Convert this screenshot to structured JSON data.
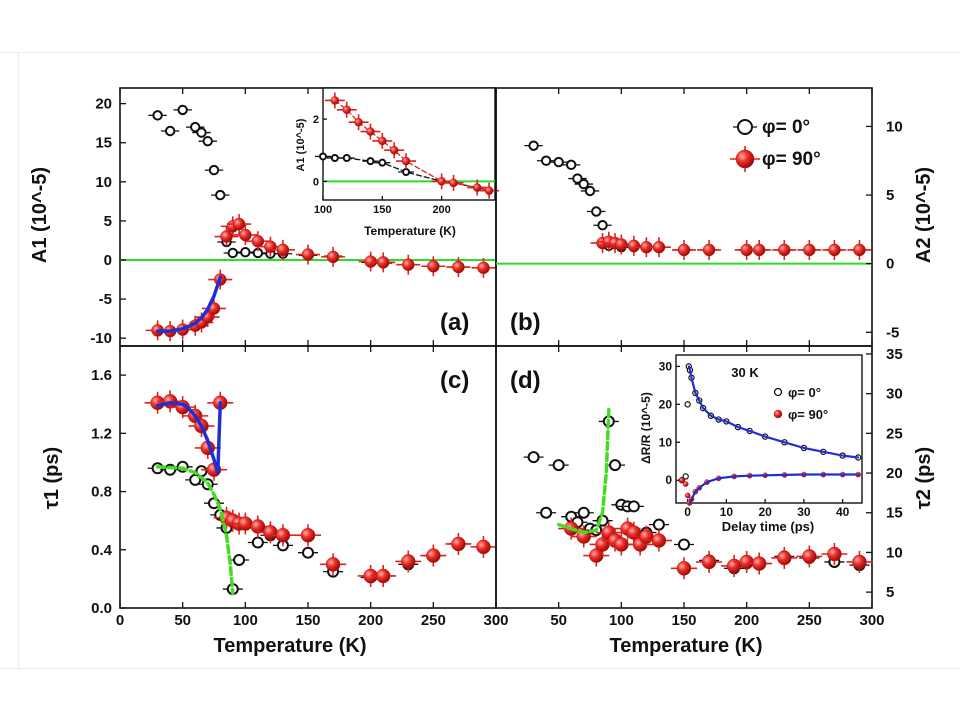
{
  "chart_data": [
    {
      "panel": "(a)",
      "type": "scatter",
      "ylabel": "A1 (10^-5)",
      "ylim": [
        -11,
        22
      ],
      "xlim": [
        0,
        300
      ],
      "yticks": [
        -10,
        -5,
        0,
        5,
        10,
        15,
        20
      ],
      "reference_line_y": 0,
      "series": [
        {
          "name": "φ= 0°",
          "marker": "open-circle-black",
          "x": [
            30,
            40,
            50,
            60,
            65,
            70,
            75,
            80,
            85,
            90,
            100,
            110,
            120,
            130,
            150,
            170,
            200,
            210,
            230,
            250,
            270,
            290
          ],
          "y": [
            18.5,
            16.5,
            19.2,
            17,
            16.3,
            15.2,
            11.5,
            8.3,
            2.3,
            0.9,
            1,
            0.9,
            0.8,
            0.8,
            0.6,
            0.5,
            -0.3,
            -0.4,
            -0.6,
            -0.8,
            -0.9,
            -1
          ]
        },
        {
          "name": "φ= 90°",
          "marker": "filled-circle-red",
          "x": [
            30,
            40,
            50,
            60,
            65,
            70,
            75,
            80,
            85,
            90,
            95,
            100,
            110,
            120,
            130,
            150,
            170,
            200,
            210,
            230,
            250,
            270,
            290
          ],
          "y": [
            -9,
            -9.1,
            -8.9,
            -8.4,
            -8,
            -7.3,
            -6.2,
            -2.5,
            3,
            4.3,
            4.6,
            3.2,
            2.4,
            1.7,
            1.3,
            0.7,
            0.4,
            -0.2,
            -0.3,
            -0.6,
            -0.8,
            -0.9,
            -1
          ]
        }
      ],
      "fit_lines": [
        {
          "color": "#1f2fd0",
          "x": [
            30,
            40,
            50,
            60,
            65,
            70,
            75,
            80
          ],
          "y": [
            -9.1,
            -9.1,
            -8.8,
            -8.1,
            -7.4,
            -6.3,
            -4.6,
            -2.2
          ]
        }
      ],
      "inset": {
        "xlabel": "Temperature (K)",
        "ylabel": "A1 (10^-5)",
        "xlim": [
          100,
          245
        ],
        "ylim": [
          -0.6,
          3
        ],
        "xticks": [
          100,
          150,
          200
        ],
        "yticks": [
          0,
          2
        ],
        "reference_line_y": 0,
        "series": [
          {
            "name": "φ= 0°",
            "x": [
              100,
              110,
              120,
              140,
              150,
              170,
              200,
              210,
              230,
              240
            ],
            "y": [
              0.8,
              0.75,
              0.75,
              0.65,
              0.6,
              0.3,
              0,
              -0.05,
              -0.2,
              -0.3
            ]
          },
          {
            "name": "φ= 90°",
            "x": [
              110,
              120,
              130,
              140,
              150,
              160,
              170,
              200,
              210,
              230,
              240
            ],
            "y": [
              2.6,
              2.3,
              1.9,
              1.6,
              1.3,
              1.0,
              0.65,
              0,
              -0.05,
              -0.2,
              -0.3
            ]
          }
        ]
      }
    },
    {
      "panel": "(b)",
      "type": "scatter",
      "ylabel": "A2 (10^-5)",
      "ylim": [
        -6,
        12.8
      ],
      "xlim": [
        0,
        300
      ],
      "yticks": [
        -5,
        0,
        5,
        10
      ],
      "reference_line_y": 0,
      "legend": {
        "position": "top-right",
        "entries": [
          "φ= 0°",
          "φ= 90°"
        ]
      },
      "series": [
        {
          "name": "φ= 0°",
          "marker": "open-circle-black",
          "x": [
            30,
            40,
            50,
            60,
            65,
            70,
            75,
            80,
            85,
            90,
            100,
            110,
            120,
            130,
            150,
            170,
            200,
            210,
            230,
            250,
            270,
            290
          ],
          "y": [
            8.6,
            7.5,
            7.4,
            7.2,
            6.2,
            5.8,
            5.3,
            3.8,
            2.8,
            1.3,
            1.2,
            1.2,
            1.2,
            1.2,
            1.0,
            1.0,
            1.0,
            1.0,
            1.0,
            1.0,
            1.0,
            1.0
          ]
        },
        {
          "name": "φ= 90°",
          "marker": "filled-circle-red",
          "x": [
            85,
            90,
            95,
            100,
            110,
            120,
            130,
            150,
            170,
            200,
            210,
            230,
            250,
            270,
            290
          ],
          "y": [
            1.5,
            1.6,
            1.5,
            1.4,
            1.3,
            1.2,
            1.2,
            1.0,
            1.0,
            1.0,
            1.0,
            1.0,
            1.0,
            1.0,
            1.0
          ]
        }
      ]
    },
    {
      "panel": "(c)",
      "type": "scatter",
      "xlabel": "Temperature (K)",
      "ylabel": "τ1 (ps)",
      "xlim": [
        0,
        300
      ],
      "ylim": [
        0,
        1.8
      ],
      "xticks": [
        0,
        50,
        100,
        150,
        200,
        250,
        300
      ],
      "yticks": [
        0.0,
        0.4,
        0.8,
        1.2,
        1.6
      ],
      "series": [
        {
          "name": "φ= 0°",
          "marker": "open-circle-black",
          "x": [
            30,
            40,
            50,
            60,
            65,
            70,
            75,
            80,
            85,
            90,
            95,
            110,
            120,
            130,
            150,
            170,
            200,
            210,
            230,
            250,
            270,
            290
          ],
          "y": [
            0.96,
            0.95,
            0.97,
            0.88,
            0.94,
            0.85,
            0.72,
            0.64,
            0.55,
            0.13,
            0.33,
            0.45,
            0.5,
            0.43,
            0.38,
            0.25,
            0.21,
            0.22,
            0.3,
            0.36,
            0.44,
            0.42
          ]
        },
        {
          "name": "φ= 90°",
          "marker": "filled-circle-red",
          "x": [
            30,
            40,
            50,
            60,
            65,
            70,
            75,
            80,
            85,
            90,
            95,
            100,
            110,
            120,
            130,
            150,
            170,
            200,
            210,
            230,
            250,
            270,
            290
          ],
          "y": [
            1.41,
            1.42,
            1.38,
            1.32,
            1.25,
            1.1,
            0.95,
            1.41,
            0.62,
            0.6,
            0.58,
            0.58,
            0.56,
            0.52,
            0.5,
            0.5,
            0.3,
            0.22,
            0.22,
            0.32,
            0.36,
            0.44,
            0.42
          ]
        }
      ],
      "fit_lines": [
        {
          "color": "#1f2fd0",
          "style": "solid",
          "x": [
            30,
            40,
            50,
            55,
            60,
            65,
            70,
            75,
            78,
            80
          ],
          "y": [
            1.39,
            1.41,
            1.4,
            1.37,
            1.32,
            1.25,
            1.15,
            1.02,
            0.93,
            1.41
          ]
        },
        {
          "color": "#44dd22",
          "style": "dashed",
          "x": [
            30,
            50,
            60,
            70,
            75,
            80,
            85,
            88,
            90
          ],
          "y": [
            0.97,
            0.96,
            0.93,
            0.86,
            0.78,
            0.68,
            0.5,
            0.3,
            0.1
          ]
        }
      ]
    },
    {
      "panel": "(d)",
      "type": "scatter",
      "xlabel": "Temperature (K)",
      "ylabel": "τ2 (ps)",
      "xlim": [
        0,
        300
      ],
      "ylim": [
        3,
        36
      ],
      "xticks": [
        0,
        50,
        100,
        150,
        200,
        250,
        300
      ],
      "yticks": [
        5,
        10,
        15,
        20,
        25,
        30,
        35
      ],
      "series": [
        {
          "name": "φ= 0°",
          "marker": "open-circle-black",
          "x": [
            30,
            40,
            50,
            60,
            65,
            70,
            75,
            80,
            85,
            90,
            95,
            100,
            105,
            110,
            120,
            130,
            150,
            170,
            190,
            200,
            210,
            230,
            250,
            270,
            290
          ],
          "y": [
            22,
            15,
            21,
            14.5,
            13.8,
            15,
            13,
            12.8,
            14,
            26.5,
            21,
            16,
            15.8,
            15.8,
            12.5,
            13.5,
            11,
            9,
            8,
            8.6,
            8.6,
            9.5,
            9.3,
            8.8,
            8.4
          ]
        },
        {
          "name": "φ= 90°",
          "marker": "filled-circle-red",
          "x": [
            60,
            70,
            80,
            85,
            90,
            95,
            100,
            105,
            110,
            115,
            120,
            130,
            150,
            170,
            190,
            200,
            210,
            230,
            250,
            270,
            290
          ],
          "y": [
            13,
            12,
            9.6,
            11,
            12.5,
            11.5,
            11,
            13,
            12.5,
            11,
            12,
            11.5,
            8,
            8.8,
            8.3,
            8.8,
            8.6,
            9.3,
            9.5,
            9.8,
            8.8
          ]
        }
      ],
      "fit_lines": [
        {
          "color": "#44dd22",
          "style": "dashed",
          "x": [
            50,
            60,
            70,
            80,
            85,
            88,
            90
          ],
          "y": [
            13.5,
            13,
            12.5,
            12.8,
            15,
            20,
            28
          ]
        }
      ],
      "inset": {
        "title": "30 K",
        "xlabel": "Delay time (ps)",
        "ylabel": "ΔR/R (10^-5)",
        "xlim": [
          -3,
          45
        ],
        "ylim": [
          -6,
          33
        ],
        "xticks": [
          0,
          10,
          20,
          30,
          40
        ],
        "yticks": [
          0,
          10,
          20,
          30
        ],
        "legend": [
          "φ= 0°",
          "φ= 90°"
        ],
        "series": [
          {
            "name": "φ= 0°",
            "x": [
              -1.5,
              -0.5,
              0,
              0.3,
              0.6,
              1,
              2,
              3,
              4,
              6,
              8,
              10,
              13,
              16,
              20,
              25,
              30,
              35,
              40,
              44
            ],
            "y": [
              0,
              1,
              20,
              30,
              29,
              27,
              23,
              21,
              19,
              17,
              16,
              15.5,
              14,
              13,
              11.5,
              10,
              8.5,
              7.5,
              6.5,
              6
            ]
          },
          {
            "name": "φ= 90°",
            "x": [
              -1.5,
              -0.5,
              0,
              0.5,
              1,
              2,
              3,
              5,
              8,
              12,
              16,
              20,
              25,
              30,
              35,
              40,
              44
            ],
            "y": [
              0,
              -1,
              -4,
              -6,
              -5,
              -3,
              -2,
              -0.5,
              0.5,
              1,
              1.2,
              1.3,
              1.4,
              1.5,
              1.5,
              1.5,
              1.5
            ]
          }
        ]
      }
    }
  ],
  "panel_labels": {
    "a": "(a)",
    "b": "(b)",
    "c": "(c)",
    "d": "(d)"
  },
  "colors": {
    "black_series": "#111111",
    "red_series": "#e0221f",
    "fit_blue": "#1f2fd0",
    "fit_green": "#44dd22",
    "zero_line": "#2ddc2a"
  }
}
